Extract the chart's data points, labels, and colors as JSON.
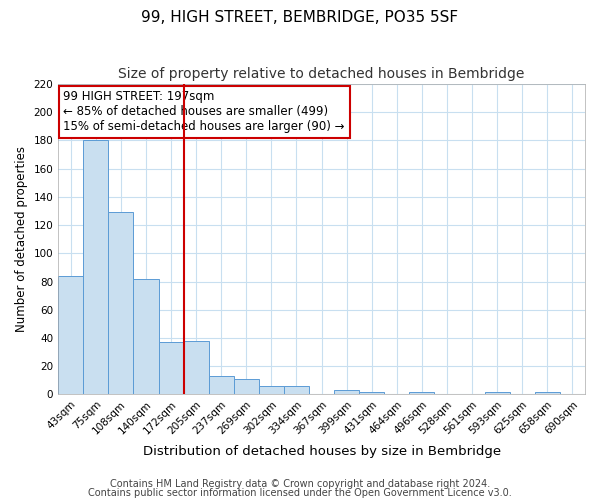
{
  "title": "99, HIGH STREET, BEMBRIDGE, PO35 5SF",
  "subtitle": "Size of property relative to detached houses in Bembridge",
  "xlabel": "Distribution of detached houses by size in Bembridge",
  "ylabel": "Number of detached properties",
  "bar_labels": [
    "43sqm",
    "75sqm",
    "108sqm",
    "140sqm",
    "172sqm",
    "205sqm",
    "237sqm",
    "269sqm",
    "302sqm",
    "334sqm",
    "367sqm",
    "399sqm",
    "431sqm",
    "464sqm",
    "496sqm",
    "528sqm",
    "561sqm",
    "593sqm",
    "625sqm",
    "658sqm",
    "690sqm"
  ],
  "bar_heights": [
    84,
    180,
    129,
    82,
    37,
    38,
    13,
    11,
    6,
    6,
    0,
    3,
    2,
    0,
    2,
    0,
    0,
    2,
    0,
    2,
    0
  ],
  "bar_color": "#c9dff0",
  "bar_edge_color": "#5b9bd5",
  "vline_color": "#cc0000",
  "annotation_title": "99 HIGH STREET: 197sqm",
  "annotation_line1": "← 85% of detached houses are smaller (499)",
  "annotation_line2": "15% of semi-detached houses are larger (90) →",
  "annotation_box_color": "#ffffff",
  "annotation_box_edge_color": "#cc0000",
  "ylim": [
    0,
    220
  ],
  "yticks": [
    0,
    20,
    40,
    60,
    80,
    100,
    120,
    140,
    160,
    180,
    200,
    220
  ],
  "footer1": "Contains HM Land Registry data © Crown copyright and database right 2024.",
  "footer2": "Contains public sector information licensed under the Open Government Licence v3.0.",
  "background_color": "#ffffff",
  "grid_color": "#c8dff0",
  "title_fontsize": 11,
  "subtitle_fontsize": 10,
  "xlabel_fontsize": 9.5,
  "ylabel_fontsize": 8.5,
  "tick_fontsize": 7.5,
  "footer_fontsize": 7.0,
  "annotation_fontsize": 8.5
}
